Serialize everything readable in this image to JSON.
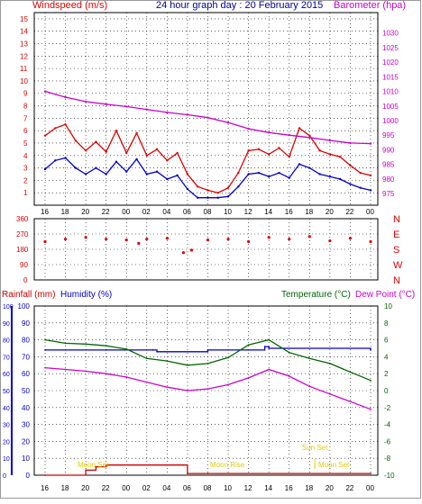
{
  "header": {
    "left_title": "Windspeed (m/s)",
    "center_title": "24 hour graph day : 20 February 2015",
    "right_title": "Barometer (hpa)"
  },
  "colors": {
    "wind": "#dd0000",
    "gust_avg": "#0000cc",
    "baro": "#cc00cc",
    "dir": "#dd0000",
    "rain": "#cc0000",
    "humidity": "#0000cc",
    "temp": "#006600",
    "dew": "#cc00cc",
    "moon": "#ddcc00",
    "axis": "#000000",
    "grid": "#000000"
  },
  "panel2": {
    "left_labels": [
      "Rainfall (mm)",
      "Humidity (%)"
    ],
    "right_labels": [
      "Temperature (°C)",
      "Dew Point (°C)"
    ],
    "events": {
      "moon_set_1": "Moon Set",
      "moon_rise": "Moon Rise",
      "sun_set": "Sun Set",
      "moon_set_2": "Moon Set"
    }
  },
  "chart_data": [
    {
      "type": "line",
      "name": "wind-baro",
      "x_ticks": [
        "16",
        "18",
        "20",
        "22",
        "00",
        "02",
        "04",
        "06",
        "08",
        "10",
        "12",
        "14",
        "16",
        "18",
        "20",
        "22",
        "00"
      ],
      "y_left": {
        "ylim": [
          0,
          15.5
        ],
        "ticks": [
          1,
          2,
          3,
          4,
          5,
          6,
          7,
          8,
          9,
          10,
          11,
          12,
          13,
          14,
          15
        ]
      },
      "y_right": {
        "ylim": [
          971,
          1037
        ],
        "ticks": [
          975,
          980,
          985,
          990,
          995,
          1000,
          1005,
          1010,
          1015,
          1020,
          1025,
          1030
        ]
      },
      "series": [
        {
          "name": "Windspeed (m/s)",
          "axis": "left",
          "color_key": "wind",
          "x": [
            0,
            0.5,
            1,
            1.5,
            2,
            2.5,
            3,
            3.5,
            4,
            4.5,
            5,
            5.5,
            6,
            6.5,
            7,
            7.5,
            8,
            8.5,
            9,
            9.5,
            10,
            10.5,
            11,
            11.5,
            12,
            12.5,
            13,
            13.5,
            14,
            14.5,
            15,
            15.5,
            16
          ],
          "values": [
            5.6,
            6.2,
            6.5,
            5.2,
            4.4,
            5.1,
            4.3,
            6.0,
            4.2,
            5.8,
            4.0,
            4.5,
            3.6,
            4.2,
            2.5,
            1.5,
            1.2,
            1.0,
            1.4,
            2.6,
            4.4,
            4.5,
            4.1,
            4.6,
            3.9,
            6.2,
            5.6,
            4.4,
            4.1,
            3.9,
            3.2,
            2.6,
            2.4
          ]
        },
        {
          "name": "",
          "axis": "left",
          "color_key": "gust_avg",
          "x": [
            0,
            0.5,
            1,
            1.5,
            2,
            2.5,
            3,
            3.5,
            4,
            4.5,
            5,
            5.5,
            6,
            6.5,
            7,
            7.5,
            8,
            8.5,
            9,
            9.5,
            10,
            10.5,
            11,
            11.5,
            12,
            12.5,
            13,
            13.5,
            14,
            14.5,
            15,
            15.5,
            16
          ],
          "values": [
            2.9,
            3.6,
            3.8,
            3.0,
            2.5,
            3.0,
            2.5,
            3.5,
            2.7,
            3.7,
            2.5,
            2.7,
            2.1,
            2.4,
            1.3,
            0.6,
            0.6,
            0.6,
            0.7,
            1.5,
            2.5,
            2.6,
            2.3,
            2.6,
            2.2,
            3.3,
            3.0,
            2.5,
            2.3,
            2.1,
            1.7,
            1.4,
            1.2
          ]
        },
        {
          "name": "Barometer (hpa)",
          "axis": "right",
          "color_key": "baro",
          "x": [
            0,
            1,
            2,
            3,
            4,
            5,
            6,
            7,
            8,
            9,
            10,
            11,
            12,
            13,
            14,
            15,
            16
          ],
          "values": [
            1010.0,
            1008.0,
            1006.5,
            1005.6,
            1004.8,
            1003.8,
            1002.8,
            1002.0,
            1001.0,
            999.3,
            997.2,
            995.9,
            995.0,
            994.2,
            993.2,
            992.3,
            992.1
          ]
        }
      ]
    },
    {
      "type": "scatter",
      "name": "wind-direction",
      "x_ticks": [
        "16",
        "18",
        "20",
        "22",
        "00",
        "02",
        "04",
        "06",
        "08",
        "10",
        "12",
        "14",
        "16",
        "18",
        "20",
        "22",
        "00"
      ],
      "y_left": {
        "ylim": [
          0,
          360
        ],
        "ticks": [
          0,
          90,
          180,
          270,
          360
        ]
      },
      "y_right_labels": [
        "N",
        "W",
        "S",
        "E",
        "N"
      ],
      "series": [
        {
          "name": "",
          "color_key": "dir",
          "x": [
            0,
            1,
            2,
            3,
            4,
            4.6,
            5,
            6,
            6.8,
            7.2,
            8,
            9,
            10,
            11,
            12,
            13,
            14,
            15,
            16
          ],
          "values": [
            225,
            240,
            250,
            240,
            235,
            215,
            240,
            245,
            160,
            175,
            235,
            240,
            225,
            250,
            240,
            255,
            230,
            245,
            225
          ]
        }
      ]
    },
    {
      "type": "line",
      "name": "rain-humidity-temperature",
      "x_ticks": [
        "16",
        "18",
        "20",
        "22",
        "00",
        "02",
        "04",
        "06",
        "08",
        "10",
        "12",
        "14",
        "16",
        "18",
        "20",
        "22",
        "00"
      ],
      "y_left": {
        "ylim": [
          0,
          100
        ],
        "ticks": [
          0,
          10,
          20,
          30,
          40,
          50,
          60,
          70,
          80,
          90,
          100
        ]
      },
      "y_right": {
        "ylim": [
          -10,
          10
        ],
        "ticks": [
          -10,
          -8,
          -6,
          -4,
          -2,
          0,
          2,
          4,
          6,
          8,
          10
        ]
      },
      "series": [
        {
          "name": "Humidity (%)",
          "axis": "left",
          "color_key": "humidity",
          "x": [
            0,
            3,
            5.3,
            5.5,
            8,
            10.8,
            11,
            16
          ],
          "values": [
            74,
            74,
            74,
            73,
            74,
            76,
            75,
            74
          ]
        },
        {
          "name": "Temperature (°C)",
          "axis": "right",
          "color_key": "temp",
          "x": [
            0,
            1,
            2,
            3,
            4,
            5,
            6,
            7,
            8,
            9,
            10,
            11,
            12,
            13,
            14,
            15,
            16
          ],
          "values": [
            6.0,
            5.6,
            5.5,
            5.3,
            4.9,
            3.8,
            3.5,
            3.0,
            3.2,
            3.9,
            5.4,
            6.0,
            4.5,
            3.8,
            3.2,
            2.2,
            1.2
          ]
        },
        {
          "name": "Dew Point (°C)",
          "axis": "right",
          "color_key": "dew",
          "x": [
            0,
            1,
            2,
            3,
            4,
            5,
            6,
            7,
            8,
            9,
            10,
            11,
            12,
            13,
            14,
            15,
            16
          ],
          "values": [
            2.7,
            2.5,
            2.3,
            2.0,
            1.6,
            1.0,
            0.4,
            0.0,
            0.2,
            0.7,
            1.5,
            2.5,
            1.7,
            0.5,
            -0.4,
            -1.3,
            -2.2
          ]
        },
        {
          "name": "Rainfall (mm)",
          "axis": "left",
          "color_key": "rain",
          "x": [
            0,
            2,
            2.5,
            3,
            6,
            6.8,
            7.0,
            8,
            16
          ],
          "values": [
            0,
            3,
            5,
            6,
            6,
            6,
            1,
            1,
            1
          ]
        }
      ]
    }
  ]
}
